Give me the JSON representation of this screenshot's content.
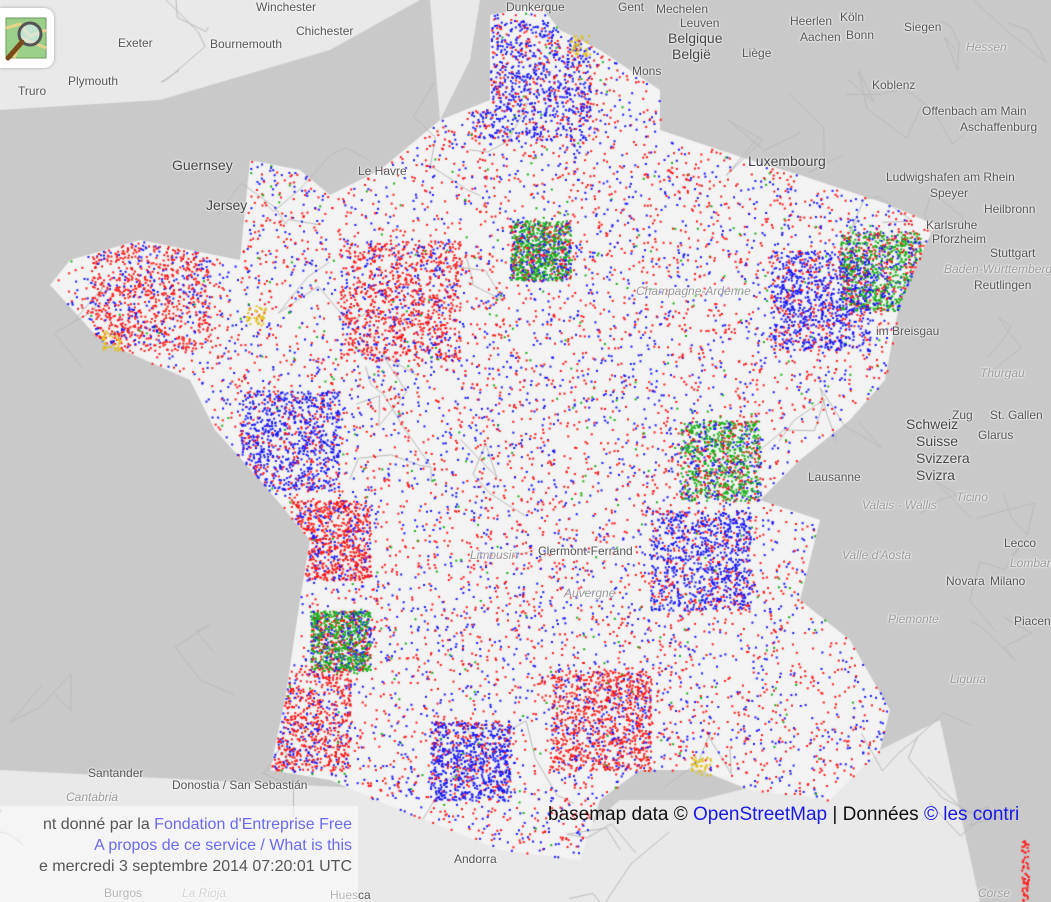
{
  "map": {
    "colors": {
      "sea": "#c9c9c9",
      "land": "#e9e9e9",
      "france": "#f3f3f3",
      "dot_red": "#ff1a1a",
      "dot_blue": "#1a1aff",
      "dot_green": "#19b019",
      "dot_yellow": "#e0c020"
    },
    "cities": [
      "Winchester",
      "Chichester",
      "Exeter",
      "Bournemouth",
      "Plymouth",
      "Truro",
      "Guernsey",
      "Jersey",
      "Gent",
      "Mechelen",
      "Leuven",
      "België",
      "Belgique",
      "Liège",
      "Heerlen",
      "Aachen",
      "Köln",
      "Bonn",
      "Siegen",
      "Hessen",
      "Koblenz",
      "Luxembourg",
      "Offenbach am Main",
      "Aschaffenburg",
      "Ludwigshafen am Rhein",
      "Speyer",
      "Heilbronn",
      "Karlsruhe",
      "Pforzheim",
      "Stuttgart",
      "Baden-Württemberg",
      "Reutlingen",
      "im Breisgau",
      "Thurgau",
      "St. Gallen",
      "Zug",
      "Glarus",
      "Schweiz",
      "Suisse",
      "Svizzera",
      "Svizra",
      "Lausanne",
      "Ticino",
      "Valais - Wallis",
      "Valle d'Aosta",
      "Lecco",
      "Novara",
      "Milano",
      "Lombardia",
      "Piemonte",
      "Liguria",
      "Piacenza",
      "Clermont-Ferrand",
      "Auvergne",
      "Limousin",
      "Santander",
      "Cantabria",
      "Donostia / San Sebastián",
      "Burgos",
      "La Rioja",
      "Andorra",
      "Huesca",
      "Corse",
      "Dunkerque",
      "Mons",
      "Le Havre",
      "Champagne-Ardenne"
    ]
  },
  "logo": {
    "icon": "magnifier-over-map-icon"
  },
  "info": {
    "line1_prefix": "nt donné par la ",
    "line1_link": "Fondation d'Entreprise Free",
    "line2_link": "A propos de ce service / What is this",
    "line3": "e mercredi  3 septembre 2014 07:20:01 UTC"
  },
  "attribution": {
    "prefix": "basemap data © ",
    "osm_link": "OpenStreetMap",
    "separator": " | Données ",
    "contrib_link": "© les contri"
  }
}
